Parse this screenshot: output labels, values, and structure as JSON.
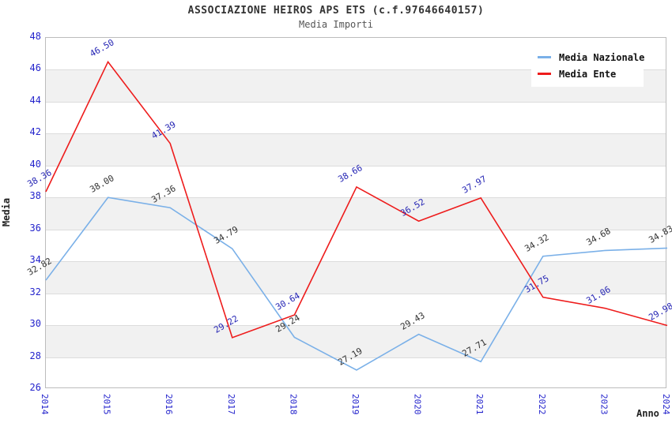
{
  "header": {
    "title": "ASSOCIAZIONE HEIROS APS ETS (c.f.97646640157)",
    "subtitle": "Media Importi"
  },
  "legend": {
    "items": [
      {
        "label": "Media Nazionale",
        "color": "#7ab0e8"
      },
      {
        "label": "Media Ente",
        "color": "#ee1c1c"
      }
    ]
  },
  "colors": {
    "tick_label": "#2323cc",
    "band": "#f1f1f1",
    "gridline": "#dcdcdc",
    "plot_border": "#bcbcbc"
  },
  "chart_data": {
    "type": "line",
    "title": "ASSOCIAZIONE HEIROS APS ETS (c.f.97646640157)",
    "subtitle": "Media Importi",
    "xlabel": "Anno",
    "ylabel": "Media",
    "categories": [
      "2014",
      "2015",
      "2016",
      "2017",
      "2018",
      "2019",
      "2020",
      "2021",
      "2022",
      "2023",
      "2024"
    ],
    "series": [
      {
        "name": "Media Nazionale",
        "color": "#7ab0e8",
        "label_color": "#333333",
        "values": [
          32.82,
          38.0,
          37.36,
          34.79,
          29.24,
          27.19,
          29.43,
          27.71,
          34.32,
          34.68,
          34.83
        ]
      },
      {
        "name": "Media Ente",
        "color": "#ee1c1c",
        "label_color": "#2525b4",
        "values": [
          38.36,
          46.5,
          41.39,
          29.22,
          30.64,
          38.66,
          36.52,
          37.97,
          31.75,
          31.06,
          29.98
        ]
      }
    ],
    "ylim": [
      26,
      48
    ],
    "ytick_step": 2,
    "grid": true,
    "alternating_bands": true,
    "legend_position": "top-right",
    "point_label_decimals": 2
  }
}
